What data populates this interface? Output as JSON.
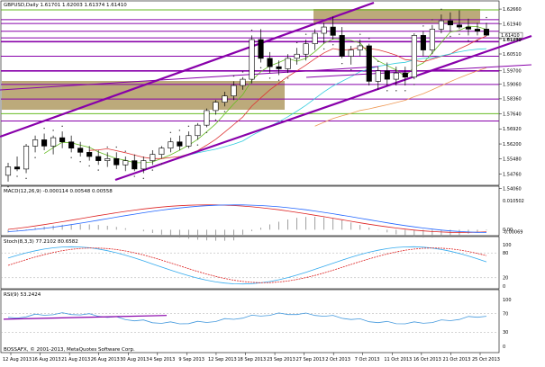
{
  "header": {
    "price_title": "GBPUSD,Daily  1.61701 1.62003 1.61374 1.61410",
    "macd_title": "MACD(12,26,9) -0.000114 0.00548 0.00558",
    "stoch_title": "Stoch(8,3,3) 77.2102 80.6582",
    "rsi_title": "RSI(9) 53.2424",
    "copyright": "BOSSAFX, © 2001-2013, MetaQuotes Software Corp."
  },
  "colors": {
    "bull_candle": "#ffffff",
    "bear_candle": "#000000",
    "macd_line": "#dd2222",
    "macd_signal": "#2266ff",
    "stoch_main": "#33aaee",
    "stoch_signal": "#dd2222",
    "rsi_line": "#4499dd",
    "trend_purple": "#8800aa",
    "zone_tan": "#b09b64",
    "ma_cyan": "#33ccdd",
    "ma_red": "#dd3333",
    "ma_orange": "#ee9955",
    "ma_green": "#66bb22"
  },
  "chart_data": [
    {
      "type": "candlestick",
      "title": "GBPUSD,Daily  1.61701 1.62003 1.61374 1.61410",
      "ylim": [
        1.5435,
        1.6275
      ],
      "y_ticks": [
        "1.62660",
        "1.61940",
        "1.61240",
        "1.60510",
        "1.59700",
        "1.59060",
        "1.58360",
        "1.57640",
        "1.56920",
        "1.56200",
        "1.55480",
        "1.54760",
        "1.54060"
      ],
      "current_price_label": "1.61410",
      "secondary_label": "1.61200",
      "x_ticks": [
        "12 Aug 2013",
        "16 Aug 2013",
        "21 Aug 2013",
        "26 Aug 2013",
        "30 Aug 2013",
        "4 Sep 2013",
        "9 Sep 2013",
        "12 Sep 2013",
        "18 Sep 2013",
        "23 Sep 2013",
        "27 Sep 2013",
        "2 Oct 2013",
        "7 Oct 2013",
        "11 Oct 2013",
        "16 Oct 2013",
        "21 Oct 2013",
        "25 Oct 2013"
      ],
      "candles": [
        {
          "o": 1.547,
          "h": 1.553,
          "l": 1.544,
          "c": 1.551
        },
        {
          "o": 1.551,
          "h": 1.556,
          "l": 1.549,
          "c": 1.55
        },
        {
          "o": 1.55,
          "h": 1.562,
          "l": 1.548,
          "c": 1.561
        },
        {
          "o": 1.561,
          "h": 1.566,
          "l": 1.558,
          "c": 1.564
        },
        {
          "o": 1.564,
          "h": 1.567,
          "l": 1.559,
          "c": 1.561
        },
        {
          "o": 1.561,
          "h": 1.566,
          "l": 1.557,
          "c": 1.565
        },
        {
          "o": 1.565,
          "h": 1.568,
          "l": 1.56,
          "c": 1.563
        },
        {
          "o": 1.563,
          "h": 1.566,
          "l": 1.558,
          "c": 1.56
        },
        {
          "o": 1.56,
          "h": 1.563,
          "l": 1.556,
          "c": 1.558
        },
        {
          "o": 1.558,
          "h": 1.561,
          "l": 1.554,
          "c": 1.556
        },
        {
          "o": 1.556,
          "h": 1.559,
          "l": 1.552,
          "c": 1.554
        },
        {
          "o": 1.554,
          "h": 1.558,
          "l": 1.551,
          "c": 1.555
        },
        {
          "o": 1.555,
          "h": 1.558,
          "l": 1.55,
          "c": 1.552
        },
        {
          "o": 1.552,
          "h": 1.556,
          "l": 1.549,
          "c": 1.554
        },
        {
          "o": 1.554,
          "h": 1.557,
          "l": 1.549,
          "c": 1.55
        },
        {
          "o": 1.55,
          "h": 1.556,
          "l": 1.548,
          "c": 1.554
        },
        {
          "o": 1.554,
          "h": 1.559,
          "l": 1.552,
          "c": 1.557
        },
        {
          "o": 1.557,
          "h": 1.561,
          "l": 1.555,
          "c": 1.56
        },
        {
          "o": 1.56,
          "h": 1.565,
          "l": 1.558,
          "c": 1.563
        },
        {
          "o": 1.563,
          "h": 1.566,
          "l": 1.559,
          "c": 1.561
        },
        {
          "o": 1.561,
          "h": 1.568,
          "l": 1.56,
          "c": 1.566
        },
        {
          "o": 1.566,
          "h": 1.572,
          "l": 1.564,
          "c": 1.571
        },
        {
          "o": 1.571,
          "h": 1.579,
          "l": 1.57,
          "c": 1.578
        },
        {
          "o": 1.578,
          "h": 1.583,
          "l": 1.576,
          "c": 1.582
        },
        {
          "o": 1.582,
          "h": 1.587,
          "l": 1.58,
          "c": 1.585
        },
        {
          "o": 1.585,
          "h": 1.592,
          "l": 1.583,
          "c": 1.59
        },
        {
          "o": 1.59,
          "h": 1.594,
          "l": 1.588,
          "c": 1.593
        },
        {
          "o": 1.593,
          "h": 1.614,
          "l": 1.591,
          "c": 1.612
        },
        {
          "o": 1.612,
          "h": 1.617,
          "l": 1.601,
          "c": 1.603
        },
        {
          "o": 1.603,
          "h": 1.606,
          "l": 1.596,
          "c": 1.599
        },
        {
          "o": 1.599,
          "h": 1.602,
          "l": 1.595,
          "c": 1.598
        },
        {
          "o": 1.598,
          "h": 1.605,
          "l": 1.596,
          "c": 1.603
        },
        {
          "o": 1.603,
          "h": 1.608,
          "l": 1.6,
          "c": 1.605
        },
        {
          "o": 1.605,
          "h": 1.612,
          "l": 1.602,
          "c": 1.61
        },
        {
          "o": 1.61,
          "h": 1.617,
          "l": 1.607,
          "c": 1.615
        },
        {
          "o": 1.615,
          "h": 1.62,
          "l": 1.61,
          "c": 1.618
        },
        {
          "o": 1.618,
          "h": 1.623,
          "l": 1.612,
          "c": 1.614
        },
        {
          "o": 1.614,
          "h": 1.618,
          "l": 1.603,
          "c": 1.604
        },
        {
          "o": 1.604,
          "h": 1.609,
          "l": 1.6,
          "c": 1.607
        },
        {
          "o": 1.607,
          "h": 1.612,
          "l": 1.604,
          "c": 1.609
        },
        {
          "o": 1.609,
          "h": 1.61,
          "l": 1.59,
          "c": 1.592
        },
        {
          "o": 1.592,
          "h": 1.599,
          "l": 1.588,
          "c": 1.597
        },
        {
          "o": 1.597,
          "h": 1.601,
          "l": 1.59,
          "c": 1.593
        },
        {
          "o": 1.593,
          "h": 1.599,
          "l": 1.59,
          "c": 1.596
        },
        {
          "o": 1.596,
          "h": 1.599,
          "l": 1.59,
          "c": 1.594
        },
        {
          "o": 1.594,
          "h": 1.615,
          "l": 1.593,
          "c": 1.614
        },
        {
          "o": 1.614,
          "h": 1.616,
          "l": 1.604,
          "c": 1.607
        },
        {
          "o": 1.607,
          "h": 1.619,
          "l": 1.605,
          "c": 1.617
        },
        {
          "o": 1.617,
          "h": 1.624,
          "l": 1.615,
          "c": 1.621
        },
        {
          "o": 1.621,
          "h": 1.625,
          "l": 1.616,
          "c": 1.619
        },
        {
          "o": 1.619,
          "h": 1.626,
          "l": 1.617,
          "c": 1.618
        },
        {
          "o": 1.618,
          "h": 1.622,
          "l": 1.614,
          "c": 1.617
        },
        {
          "o": 1.617,
          "h": 1.62,
          "l": 1.614,
          "c": 1.616
        },
        {
          "o": 1.617,
          "h": 1.62,
          "l": 1.6137,
          "c": 1.6141
        }
      ]
    },
    {
      "type": "histogram",
      "title": "MACD(12,26,9) -0.000114 0.00548 0.00558",
      "ylim": [
        -0.0015,
        0.0125
      ],
      "y_ticks": [
        "0.010502",
        "0.00",
        "-0.00069"
      ]
    },
    {
      "type": "line",
      "title": "Stoch(8,3,3) 77.2102 80.6582",
      "ylim": [
        0,
        100
      ],
      "y_ticks": [
        "100",
        "80",
        "20",
        "0"
      ]
    },
    {
      "type": "line",
      "title": "RSI(9) 53.2424",
      "ylim": [
        0,
        100
      ],
      "y_ticks": [
        "100",
        "70",
        "30",
        "0"
      ]
    }
  ]
}
